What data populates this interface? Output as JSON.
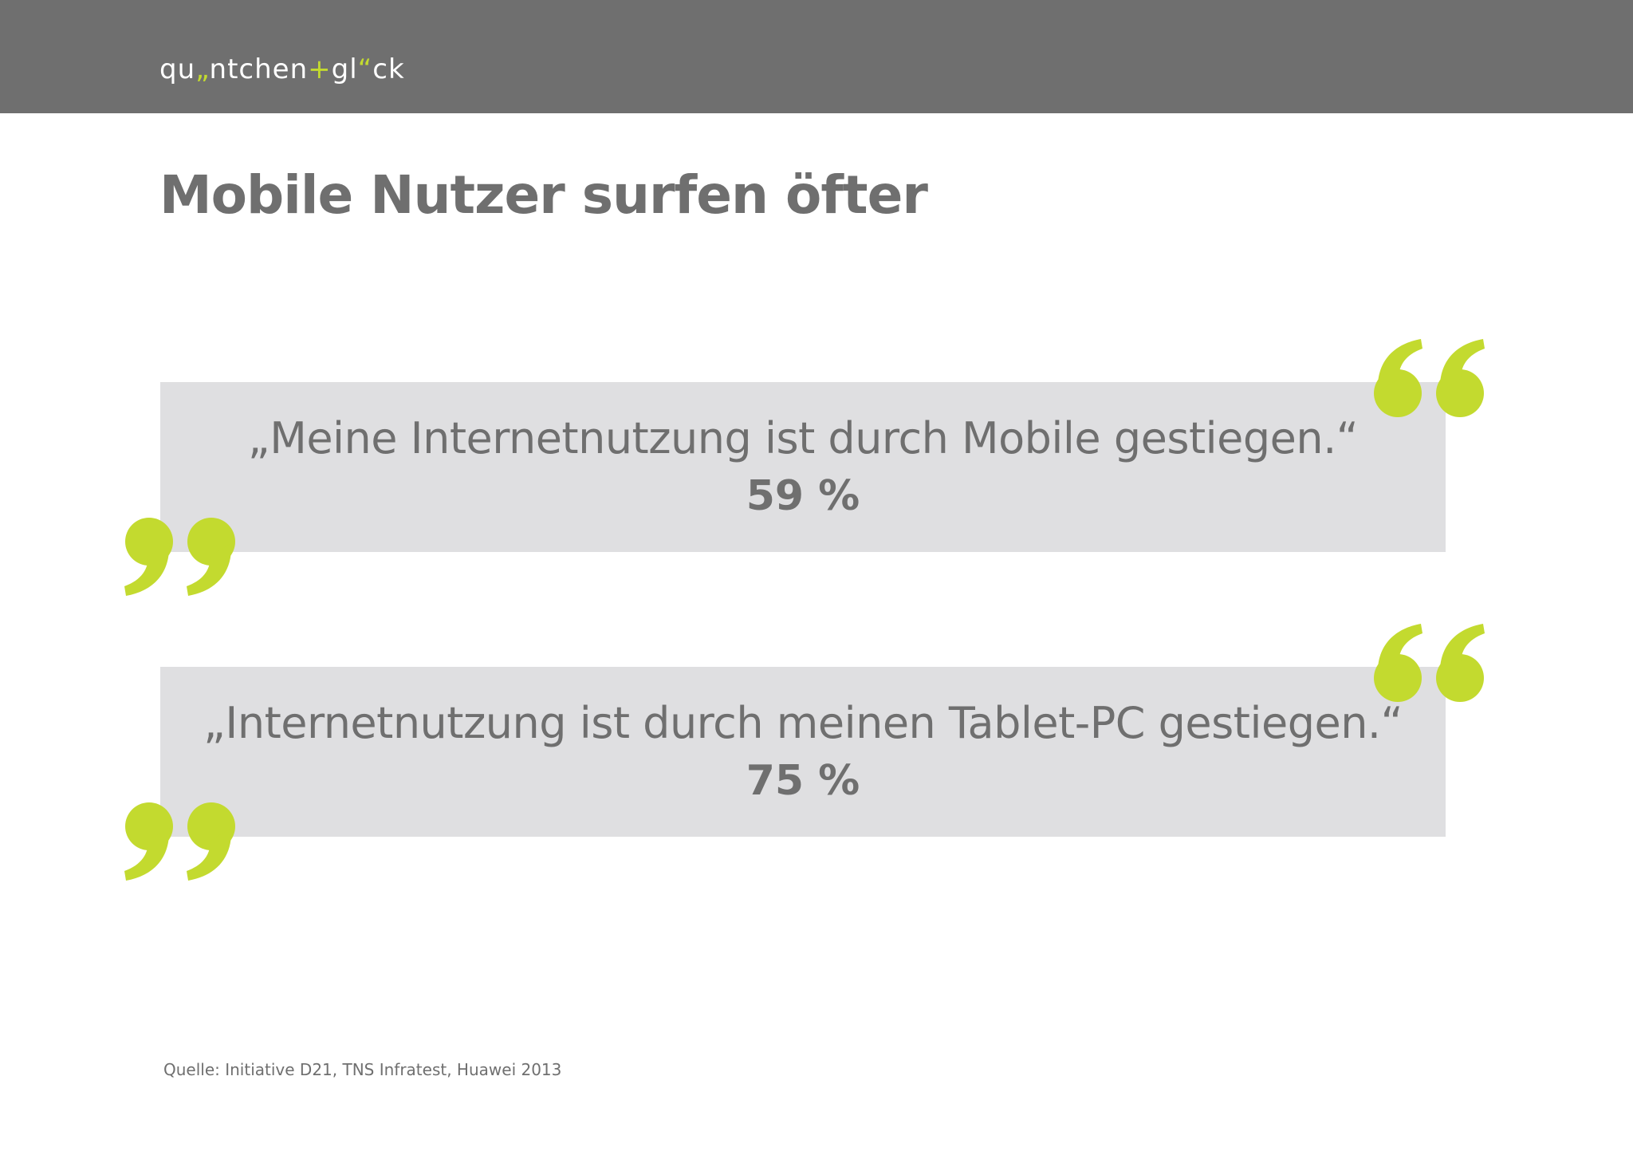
{
  "header": {
    "logo_parts": [
      "qu",
      "„",
      "ntchen",
      "+",
      "gl",
      "“",
      "ck"
    ]
  },
  "page_title": "Mobile Nutzer surfen öfter",
  "quotes": [
    {
      "text": "„Meine Internetnutzung ist durch Mobile gestiegen.“",
      "value": "59 %"
    },
    {
      "text": "„Internetnutzung ist durch meinen Tablet-PC gestiegen.“",
      "value": "75 %"
    }
  ],
  "source": "Quelle: Initiative D21, TNS Infratest, Huawei 2013",
  "colors": {
    "header_bg": "#6f6f6f",
    "accent": "#c3da2f",
    "text": "#6f6f6f",
    "quote_box_bg": "#dfdfe1"
  },
  "icons": {
    "open_quote": "open-quote-mark-icon",
    "close_quote": "close-quote-mark-icon"
  }
}
